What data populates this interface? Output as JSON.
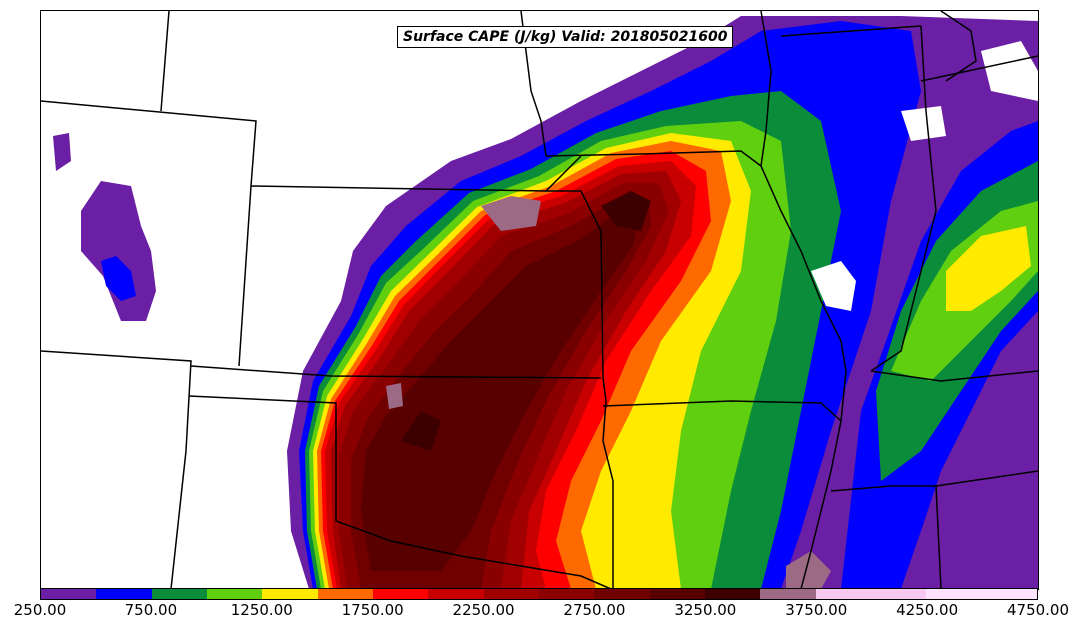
{
  "title": "Surface CAPE (J/kg) Valid: 201805021600",
  "colors": {
    "c250": "#6a1fa4",
    "c500": "#0000ff",
    "c750": "#0a8c3a",
    "c1000": "#5fcf10",
    "c1250": "#ffea00",
    "c1500": "#ff6a00",
    "c1750": "#ff0000",
    "c2000": "#c80000",
    "c2250": "#a00000",
    "c2500": "#8a0000",
    "c2750": "#700000",
    "c3000": "#580000",
    "c3250": "#3c0000",
    "c3500": "#9c6a84",
    "c3750": "#f7c8f0",
    "c4250": "#fde3fb"
  },
  "colorbar": {
    "swatches": [
      "#6a1fa4",
      "#0000ff",
      "#0a8c3a",
      "#5fcf10",
      "#ffea00",
      "#ff6a00",
      "#ff0000",
      "#c80000",
      "#a00000",
      "#8a0000",
      "#700000",
      "#580000",
      "#3c0000",
      "#9c6a84",
      "#f7c8f0",
      "#f7c8f0",
      "#fde3fb",
      "#fde3fb"
    ],
    "tick_labels": [
      "250.00",
      "750.00",
      "1250.00",
      "1750.00",
      "2250.00",
      "2750.00",
      "3250.00",
      "3750.00",
      "4250.00",
      "4750.00"
    ]
  }
}
